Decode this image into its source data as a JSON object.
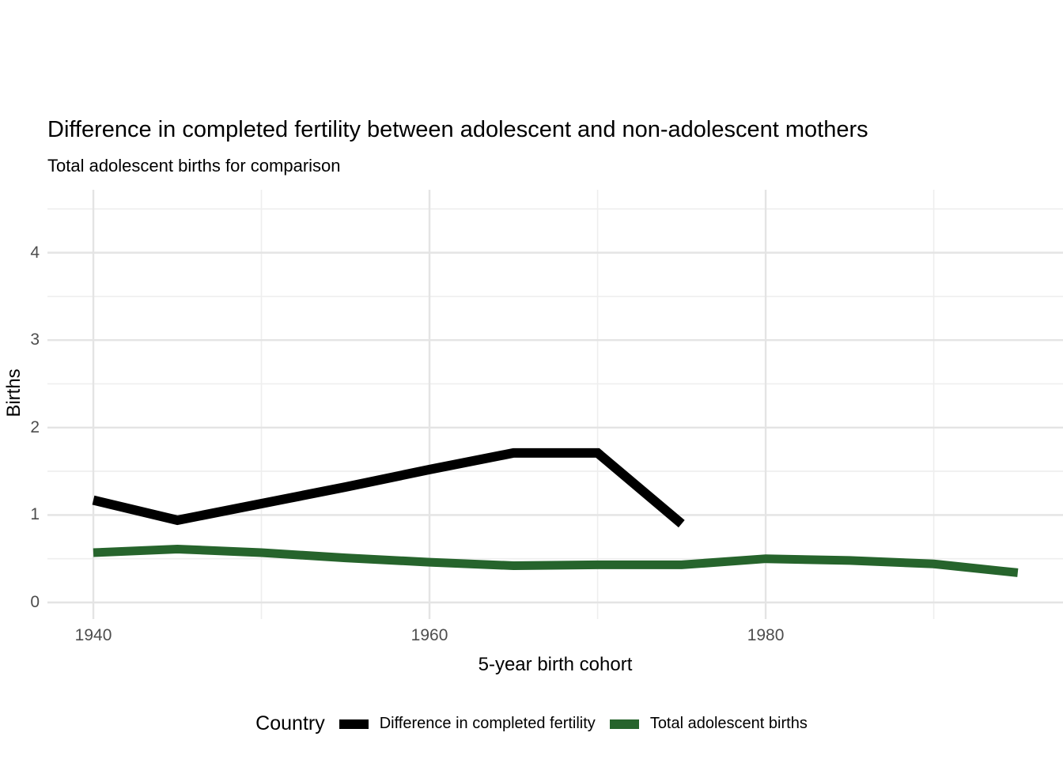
{
  "title": "Difference in completed fertility between adolescent and non-adolescent mothers",
  "subtitle": "Total adolescent births for comparison",
  "axes": {
    "x_title": "5-year birth cohort",
    "y_title": "Births"
  },
  "legend": {
    "title": "Country",
    "items": [
      {
        "label": "Difference in completed fertility",
        "color": "#000000"
      },
      {
        "label": "Total adolescent births",
        "color": "#26642c"
      }
    ]
  },
  "colors": {
    "background": "#ffffff",
    "grid_major": "#e4e4e4",
    "grid_minor": "#eeeeee",
    "axis_text": "#4d4d4d",
    "text": "#000000",
    "series_black": "#000000",
    "series_green": "#26642c"
  },
  "chart_data": {
    "type": "line",
    "title": "Difference in completed fertility between adolescent and non-adolescent mothers",
    "subtitle": "Total adolescent births for comparison",
    "xlabel": "5-year birth cohort",
    "ylabel": "Births",
    "legend_title": "Country",
    "legend_position": "bottom",
    "grid": true,
    "x_range": [
      1937.27,
      1997.69
    ],
    "y_range": [
      -0.19,
      4.72
    ],
    "x_ticks": [
      1940,
      1960,
      1980
    ],
    "x_minor_ticks": [
      1950,
      1970,
      1990
    ],
    "y_ticks": [
      0,
      1,
      2,
      3,
      4
    ],
    "y_minor_ticks": [
      0.5,
      1.5,
      2.5,
      3.5,
      4.5
    ],
    "series": [
      {
        "name": "Difference in completed fertility",
        "color": "#000000",
        "points": [
          [
            1940,
            1.17
          ],
          [
            1945,
            0.94
          ],
          [
            1950,
            1.13
          ],
          [
            1955,
            1.32
          ],
          [
            1960,
            1.52
          ],
          [
            1965,
            1.71
          ],
          [
            1970,
            1.71
          ],
          [
            1975,
            0.9
          ]
        ]
      },
      {
        "name": "Total adolescent births",
        "color": "#26642c",
        "points": [
          [
            1940,
            0.57
          ],
          [
            1945,
            0.61
          ],
          [
            1950,
            0.57
          ],
          [
            1955,
            0.51
          ],
          [
            1960,
            0.46
          ],
          [
            1965,
            0.42
          ],
          [
            1970,
            0.43
          ],
          [
            1975,
            0.43
          ],
          [
            1980,
            0.5
          ],
          [
            1985,
            0.48
          ],
          [
            1990,
            0.44
          ],
          [
            1995,
            0.34
          ]
        ]
      }
    ]
  }
}
